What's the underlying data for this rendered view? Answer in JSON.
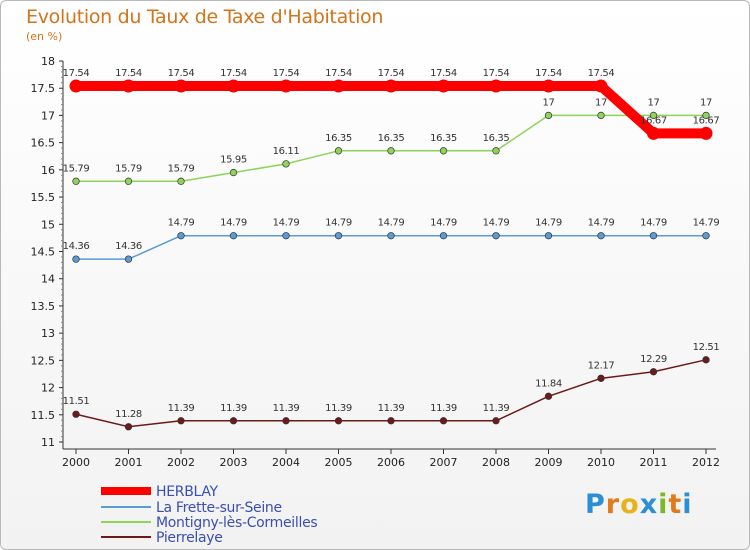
{
  "chart_data": {
    "type": "line",
    "title": "Evolution du Taux de Taxe d'Habitation",
    "subtitle": "(en %)",
    "x": [
      "2000",
      "2001",
      "2002",
      "2003",
      "2004",
      "2005",
      "2006",
      "2007",
      "2008",
      "2009",
      "2010",
      "2011",
      "2012"
    ],
    "ylim": [
      11,
      18
    ],
    "yticks": [
      "11",
      "11.5",
      "12",
      "12.5",
      "13",
      "13.5",
      "14",
      "14.5",
      "15",
      "15.5",
      "16",
      "16.5",
      "17",
      "17.5",
      "18"
    ],
    "grid": false,
    "legend": "bottom-left",
    "series": [
      {
        "name": "HERBLAY",
        "color": "#ff0000",
        "width": 10,
        "values": [
          17.54,
          17.54,
          17.54,
          17.54,
          17.54,
          17.54,
          17.54,
          17.54,
          17.54,
          17.54,
          17.54,
          16.67,
          16.67
        ],
        "labels": [
          "17.54",
          "17.54",
          "17.54",
          "17.54",
          "17.54",
          "17.54",
          "17.54",
          "17.54",
          "17.54",
          "17.54",
          "17.54",
          "16.67",
          "16.67"
        ]
      },
      {
        "name": "La Frette-sur-Seine",
        "color": "#5b9bd5",
        "width": 1.5,
        "values": [
          14.36,
          14.36,
          14.79,
          14.79,
          14.79,
          14.79,
          14.79,
          14.79,
          14.79,
          14.79,
          14.79,
          14.79,
          14.79
        ],
        "labels": [
          "14.36",
          "14.36",
          "14.79",
          "14.79",
          "14.79",
          "14.79",
          "14.79",
          "14.79",
          "14.79",
          "14.79",
          "14.79",
          "14.79",
          "14.79"
        ]
      },
      {
        "name": "Montigny-lès-Cormeilles",
        "color": "#8ed35a",
        "width": 1.5,
        "values": [
          15.79,
          15.79,
          15.79,
          15.95,
          16.11,
          16.35,
          16.35,
          16.35,
          16.35,
          17,
          17,
          17,
          17
        ],
        "labels": [
          "15.79",
          "15.79",
          "15.79",
          "15.95",
          "16.11",
          "16.35",
          "16.35",
          "16.35",
          "16.35",
          "17",
          "17",
          "17",
          "17"
        ]
      },
      {
        "name": "Pierrelaye",
        "color": "#6d1a1a",
        "width": 1.5,
        "values": [
          11.51,
          11.28,
          11.39,
          11.39,
          11.39,
          11.39,
          11.39,
          11.39,
          11.39,
          11.84,
          12.17,
          12.29,
          12.51
        ],
        "labels": [
          "11.51",
          "11.28",
          "11.39",
          "11.39",
          "11.39",
          "11.39",
          "11.39",
          "11.39",
          "11.39",
          "11.84",
          "12.17",
          "12.29",
          "12.51"
        ]
      }
    ]
  },
  "logo": {
    "letters": [
      "P",
      "r",
      "o",
      "x",
      "i",
      "t",
      "i"
    ],
    "colors": [
      "#2a8fd4",
      "#e07a1a",
      "#e8b21a",
      "#2a8fd4",
      "#7ab829",
      "#e07a1a",
      "#2a8fd4"
    ]
  }
}
